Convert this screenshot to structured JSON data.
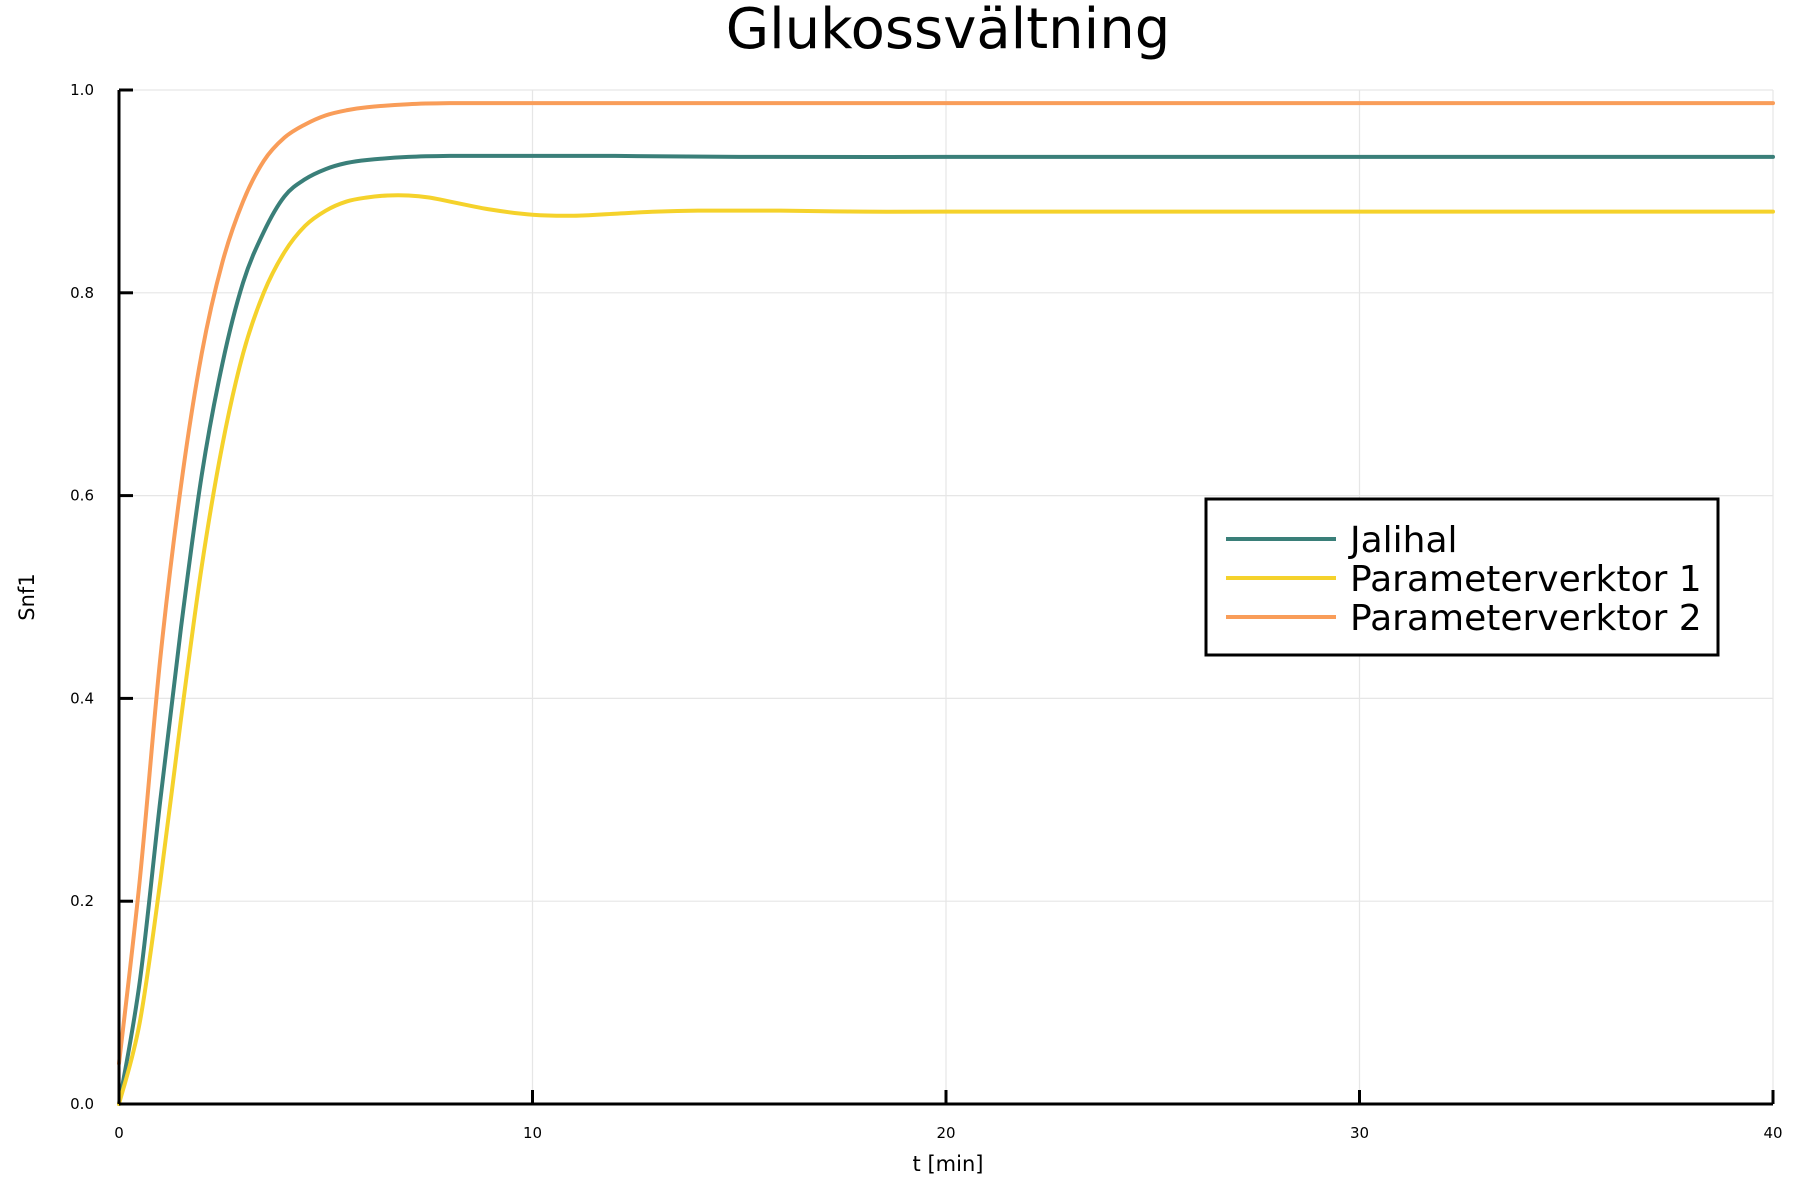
{
  "chart_data": {
    "type": "line",
    "title": "Glukossvältning",
    "xlabel": "t [min]",
    "ylabel": "Snf1",
    "xlim": [
      0,
      40
    ],
    "ylim": [
      0,
      1
    ],
    "xticks": [
      0,
      10,
      20,
      30,
      40
    ],
    "xtick_labels": [
      "0",
      "10",
      "20",
      "30",
      "40"
    ],
    "yticks": [
      0,
      0.2,
      0.4,
      0.6,
      0.8,
      1.0
    ],
    "ytick_labels": [
      "0.0",
      "0.2",
      "0.4",
      "0.6",
      "0.8",
      "1.0"
    ],
    "grid": true,
    "legend_position": "right",
    "series": [
      {
        "name": "Jalihal",
        "color": "#3a7f79",
        "x": [
          0,
          0.5,
          1,
          1.5,
          2,
          2.5,
          3,
          3.5,
          4,
          4.5,
          5,
          5.5,
          6,
          7,
          8,
          9,
          10,
          12,
          15,
          20,
          25,
          30,
          35,
          40
        ],
        "y": [
          0.0,
          0.12,
          0.3,
          0.47,
          0.62,
          0.73,
          0.81,
          0.86,
          0.895,
          0.912,
          0.922,
          0.928,
          0.931,
          0.934,
          0.935,
          0.935,
          0.935,
          0.935,
          0.934,
          0.934,
          0.934,
          0.934,
          0.934,
          0.934
        ]
      },
      {
        "name": "Parameterverktor 1",
        "color": "#f5d22b",
        "x": [
          0,
          0.5,
          1,
          1.5,
          2,
          2.5,
          3,
          3.5,
          4,
          4.5,
          5,
          5.5,
          6,
          6.5,
          7,
          7.5,
          8,
          9,
          10,
          11,
          12,
          13,
          14,
          15,
          16,
          18,
          20,
          25,
          30,
          35,
          40
        ],
        "y": [
          0.0,
          0.08,
          0.22,
          0.38,
          0.53,
          0.65,
          0.74,
          0.8,
          0.84,
          0.866,
          0.881,
          0.89,
          0.894,
          0.896,
          0.896,
          0.894,
          0.89,
          0.882,
          0.877,
          0.876,
          0.878,
          0.88,
          0.881,
          0.881,
          0.881,
          0.88,
          0.88,
          0.88,
          0.88,
          0.88,
          0.88
        ]
      },
      {
        "name": "Parameterverktor 2",
        "color": "#f99d59",
        "x": [
          0,
          0.5,
          1,
          1.5,
          2,
          2.5,
          3,
          3.5,
          4,
          4.5,
          5,
          5.5,
          6,
          7,
          8,
          9,
          10,
          12,
          15,
          20,
          25,
          30,
          35,
          40
        ],
        "y": [
          0.04,
          0.22,
          0.44,
          0.61,
          0.74,
          0.83,
          0.89,
          0.93,
          0.953,
          0.966,
          0.975,
          0.98,
          0.983,
          0.986,
          0.987,
          0.987,
          0.987,
          0.987,
          0.987,
          0.987,
          0.987,
          0.987,
          0.987,
          0.987
        ]
      }
    ]
  }
}
